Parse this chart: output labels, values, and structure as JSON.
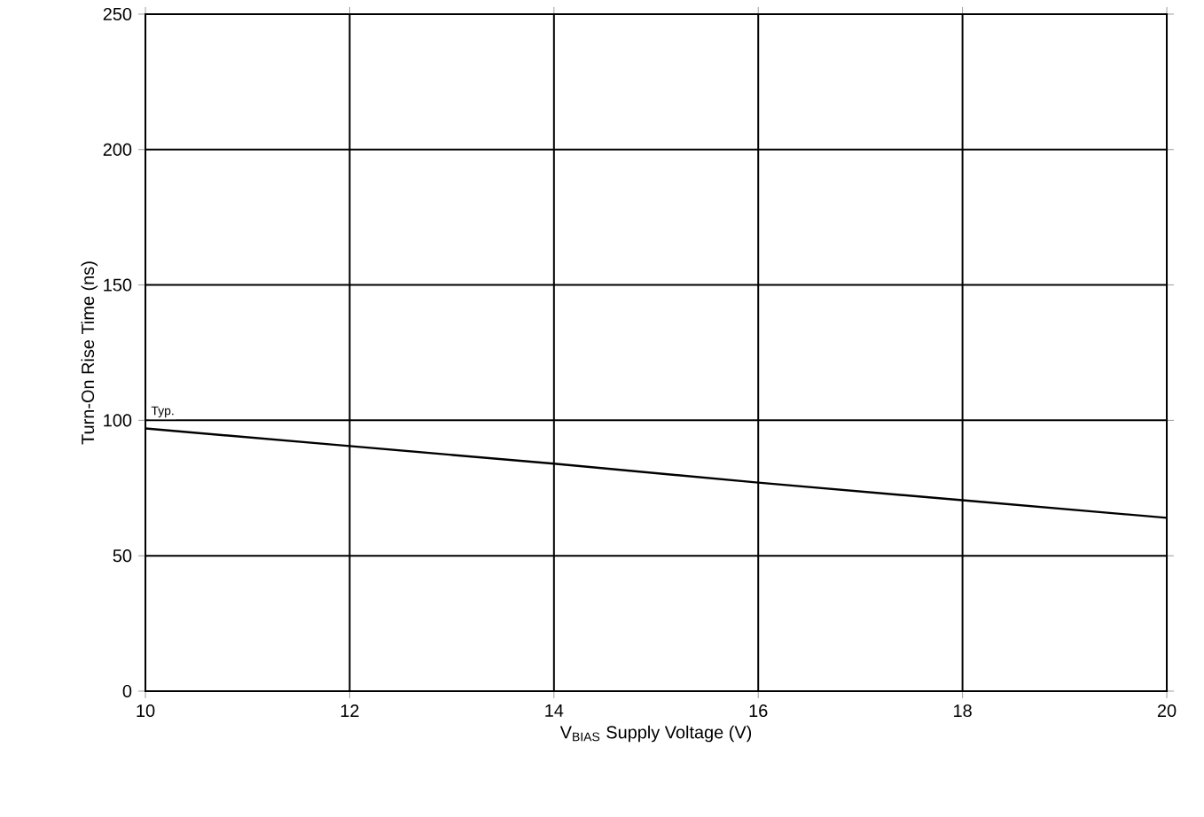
{
  "chart_data": {
    "type": "line",
    "xlabel": "V$_{BIAS}$ Supply Voltage (V)",
    "ylabel": "Turn-On Rise Time (ns)",
    "x": [
      10,
      12,
      14,
      16,
      18,
      20
    ],
    "series": [
      {
        "color": "#000000",
        "values": [
          97,
          90.5,
          84,
          77,
          70.5,
          64
        ]
      }
    ],
    "xlim": [
      10,
      20
    ],
    "xticks": [
      10,
      12,
      14,
      16,
      18,
      20
    ],
    "ylim": [
      0,
      250
    ],
    "yticks": [
      0,
      50,
      100,
      150,
      200,
      250
    ],
    "grid": true,
    "annotations": [
      {
        "text": "Typ.",
        "x": 10,
        "y": 97
      }
    ]
  }
}
